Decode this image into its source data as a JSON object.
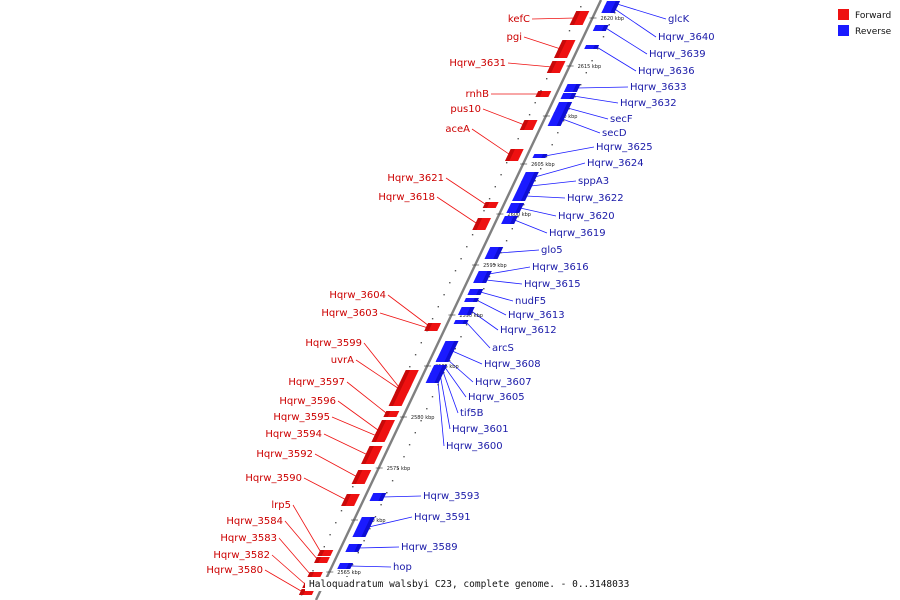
{
  "caption": "Haloquadratum walsbyi C23, complete genome. - 0..3148033",
  "legend": [
    {
      "label": "Forward",
      "color": "#ee1111"
    },
    {
      "label": "Reverse",
      "color": "#1a1aff"
    }
  ],
  "colors": {
    "forward": "#ee1111",
    "reverse": "#1a1aff",
    "forward_text": "#cc0000",
    "reverse_text": "#1a1aa8",
    "axis": "#808080"
  },
  "ticks": [
    "2565 kbp",
    "2570 kbp",
    "2575 kbp",
    "2580 kbp",
    "2585 kbp",
    "2590 kbp",
    "2595 kbp",
    "2600 kbp",
    "2605 kbp",
    "2610 kbp",
    "2615 kbp",
    "2620 kbp"
  ],
  "forward_genes": [
    "kefC",
    "pgi",
    "Hqrw_3631",
    "rnhB",
    "pus10",
    "aceA",
    "Hqrw_3621",
    "Hqrw_3618",
    "Hqrw_3604",
    "Hqrw_3603",
    "Hqrw_3599",
    "uvrA",
    "Hqrw_3597",
    "Hqrw_3596",
    "Hqrw_3595",
    "Hqrw_3594",
    "Hqrw_3592",
    "Hqrw_3590",
    "lrp5",
    "Hqrw_3584",
    "Hqrw_3583",
    "Hqrw_3582",
    "Hqrw_3580"
  ],
  "reverse_genes": [
    "glcK",
    "Hqrw_3640",
    "Hqrw_3639",
    "Hqrw_3636",
    "Hqrw_3633",
    "Hqrw_3632",
    "secF",
    "secD",
    "Hqrw_3625",
    "Hqrw_3624",
    "sppA3",
    "Hqrw_3622",
    "Hqrw_3620",
    "Hqrw_3619",
    "glo5",
    "Hqrw_3616",
    "Hqrw_3615",
    "nudF5",
    "Hqrw_3613",
    "Hqrw_3612",
    "arcS",
    "Hqrw_3608",
    "Hqrw_3607",
    "Hqrw_3605",
    "tif5B",
    "Hqrw_3601",
    "Hqrw_3600",
    "Hqrw_3593",
    "Hqrw_3591",
    "Hqrw_3589",
    "hop"
  ]
}
